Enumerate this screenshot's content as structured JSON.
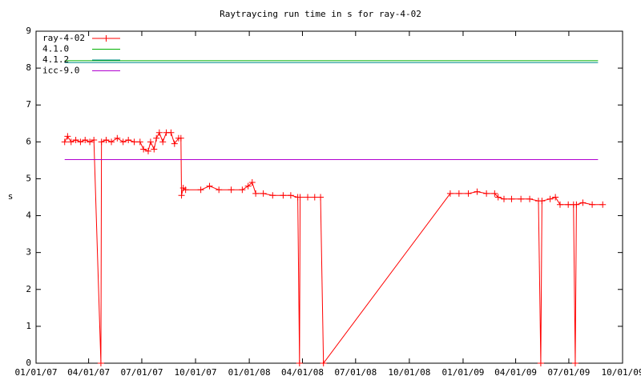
{
  "chart_data": {
    "type": "line",
    "title": "Raytraycing run time in s for ray-4-02",
    "ylabel": "s",
    "xlim": [
      "2007-01-01",
      "2009-10-01"
    ],
    "xticks": [
      {
        "value": "2007-01-01",
        "label": "01/01/07"
      },
      {
        "value": "2007-04-01",
        "label": "04/01/07"
      },
      {
        "value": "2007-07-01",
        "label": "07/01/07"
      },
      {
        "value": "2007-10-01",
        "label": "10/01/07"
      },
      {
        "value": "2008-01-01",
        "label": "01/01/08"
      },
      {
        "value": "2008-04-01",
        "label": "04/01/08"
      },
      {
        "value": "2008-07-01",
        "label": "07/01/08"
      },
      {
        "value": "2008-10-01",
        "label": "10/01/08"
      },
      {
        "value": "2009-01-01",
        "label": "01/01/09"
      },
      {
        "value": "2009-04-01",
        "label": "04/01/09"
      },
      {
        "value": "2009-07-01",
        "label": "07/01/09"
      },
      {
        "value": "2009-10-01",
        "label": "10/01/09"
      }
    ],
    "ylim": [
      0,
      9
    ],
    "yticks": [
      0,
      1,
      2,
      3,
      4,
      5,
      6,
      7,
      8,
      9
    ],
    "legend": "top-left",
    "series": [
      {
        "name": "ray-4-02",
        "color": "#ff0000",
        "markers": true,
        "x": [
          "2007-02-19",
          "2007-02-24",
          "2007-03-02",
          "2007-03-10",
          "2007-03-18",
          "2007-03-26",
          "2007-04-03",
          "2007-04-10",
          "2007-04-22",
          "2007-04-23",
          "2007-05-01",
          "2007-05-10",
          "2007-05-20",
          "2007-05-30",
          "2007-06-08",
          "2007-06-18",
          "2007-06-28",
          "2007-07-04",
          "2007-07-12",
          "2007-07-16",
          "2007-07-22",
          "2007-07-26",
          "2007-07-31",
          "2007-08-06",
          "2007-08-12",
          "2007-08-20",
          "2007-08-26",
          "2007-09-02",
          "2007-09-06",
          "2007-09-07",
          "2007-09-10",
          "2007-09-14",
          "2007-10-10",
          "2007-10-25",
          "2007-11-10",
          "2007-12-01",
          "2007-12-20",
          "2007-12-30",
          "2008-01-06",
          "2008-01-12",
          "2008-01-25",
          "2008-02-10",
          "2008-02-28",
          "2008-03-12",
          "2008-03-24",
          "2008-03-27",
          "2008-03-28",
          "2008-04-10",
          "2008-04-22",
          "2008-05-02",
          "2008-05-07",
          "2008-12-10",
          "2008-12-25",
          "2009-01-10",
          "2009-01-25",
          "2009-02-10",
          "2009-02-24",
          "2009-03-02",
          "2009-03-12",
          "2009-03-25",
          "2009-04-10",
          "2009-04-25",
          "2009-05-10",
          "2009-05-14",
          "2009-05-16",
          "2009-05-30",
          "2009-06-08",
          "2009-06-16",
          "2009-06-30",
          "2009-07-09",
          "2009-07-12",
          "2009-07-14",
          "2009-07-25",
          "2009-08-10",
          "2009-08-28"
        ],
        "values": [
          6.0,
          6.15,
          6.0,
          6.05,
          6.0,
          6.05,
          6.0,
          6.05,
          0,
          6.0,
          6.05,
          6.0,
          6.1,
          6.0,
          6.05,
          6.0,
          6.0,
          5.8,
          5.75,
          6.0,
          5.8,
          6.1,
          6.25,
          6.0,
          6.25,
          6.25,
          5.95,
          6.1,
          6.1,
          4.55,
          4.75,
          4.7,
          4.7,
          4.8,
          4.7,
          4.7,
          4.7,
          4.8,
          4.9,
          4.6,
          4.6,
          4.55,
          4.55,
          4.55,
          4.5,
          0,
          4.5,
          4.5,
          4.5,
          4.5,
          0,
          4.6,
          4.6,
          4.6,
          4.65,
          4.6,
          4.6,
          4.5,
          4.45,
          4.45,
          4.45,
          4.45,
          4.4,
          0,
          4.4,
          4.45,
          4.5,
          4.3,
          4.3,
          4.3,
          0,
          4.3,
          4.35,
          4.3,
          4.3
        ]
      },
      {
        "name": "4.1.0",
        "color": "#00b000",
        "x": [
          "2007-02-19",
          "2009-08-20"
        ],
        "values": [
          8.2,
          8.2
        ]
      },
      {
        "name": "4.1.2",
        "color": "#008b8b",
        "x": [
          "2007-02-19",
          "2009-08-20"
        ],
        "values": [
          8.15,
          8.15
        ]
      },
      {
        "name": "icc-9.0",
        "color": "#b000d0",
        "x": [
          "2007-02-19",
          "2009-08-20"
        ],
        "values": [
          5.52,
          5.52
        ]
      }
    ]
  }
}
